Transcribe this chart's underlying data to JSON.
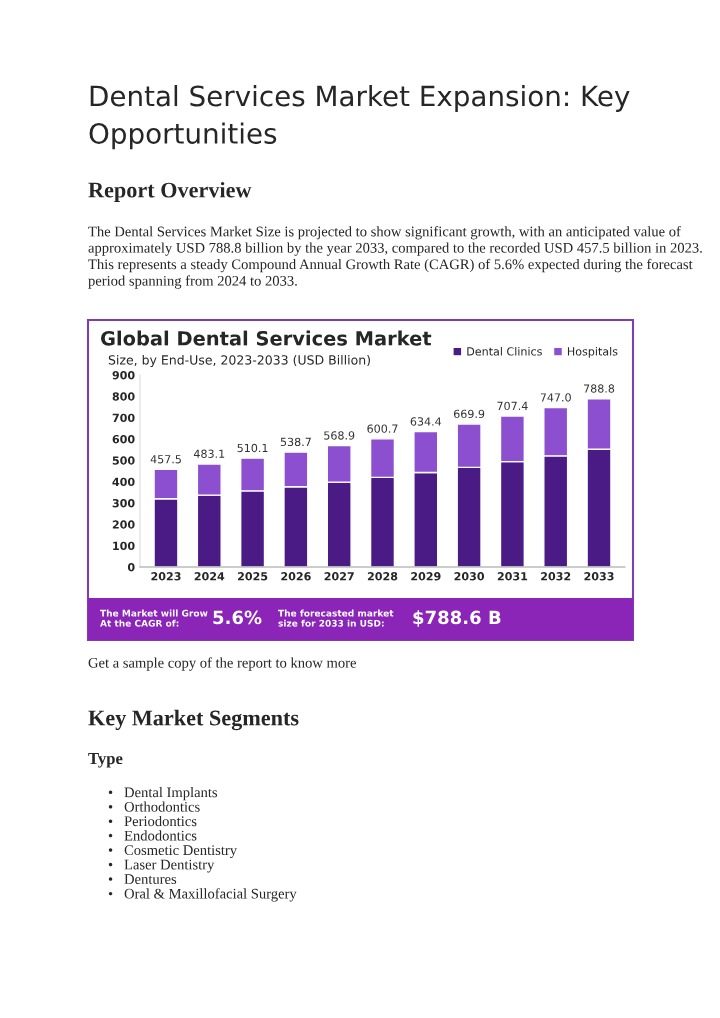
{
  "chart_data": {
    "type": "bar",
    "title": "Global Dental Services Market",
    "subtitle": "Size, by End-Use, 2023-2033 (USD Billion)",
    "categories": [
      "2023",
      "2024",
      "2025",
      "2026",
      "2027",
      "2028",
      "2029",
      "2030",
      "2031",
      "2032",
      "2033"
    ],
    "series": [
      {
        "name": "Dental Clinics",
        "color": "#4a1a85",
        "values": [
          320,
          337,
          357,
          376,
          398,
          420,
          443,
          467,
          494,
          521,
          552
        ]
      },
      {
        "name": "Hospitals",
        "color": "#8c4fd0",
        "values": [
          137.5,
          146.1,
          153.1,
          162.7,
          170.9,
          180.7,
          191.4,
          202.9,
          213.4,
          226.0,
          236.8
        ]
      }
    ],
    "stacked": true,
    "totals": [
      "457.5",
      "483.1",
      "510.1",
      "538.7",
      "568.9",
      "600.7",
      "634.4",
      "669.9",
      "707.4",
      "747.0",
      "788.8"
    ],
    "ylim": [
      0,
      900
    ],
    "yticks": [
      0,
      100,
      200,
      300,
      400,
      500,
      600,
      700,
      800,
      900
    ],
    "grid": false,
    "legend": "top right",
    "annotations": [
      "Dental Services Market Expansion: Key Opportunities",
      "Report Overview",
      "The Dental Services Market Size is projected to show significant growth, with an anticipated value of approximately USD 788.8 billion by the year 2033, compared to the recorded USD 457.5 billion in 2023. This represents a steady Compound Annual Growth Rate (CAGR) of 5.6% expected during the forecast period spanning from 2024 to 2033.",
      "The Market will Grow\nAt the CAGR of:",
      "5.6%",
      "The forecasted market\nsize for 2033 in USD:",
      "$788.6 B",
      "Get a sample copy of the report to know more",
      "Key Market Segments",
      "Type",
      "•   Dental Implants\n•   Orthodontics\n•   Periodontics\n•   Endodontics\n•   Cosmetic Dentistry\n•   Laser Dentistry\n•   Dentures\n•   Oral & Maxillofacial Surgery"
    ]
  }
}
